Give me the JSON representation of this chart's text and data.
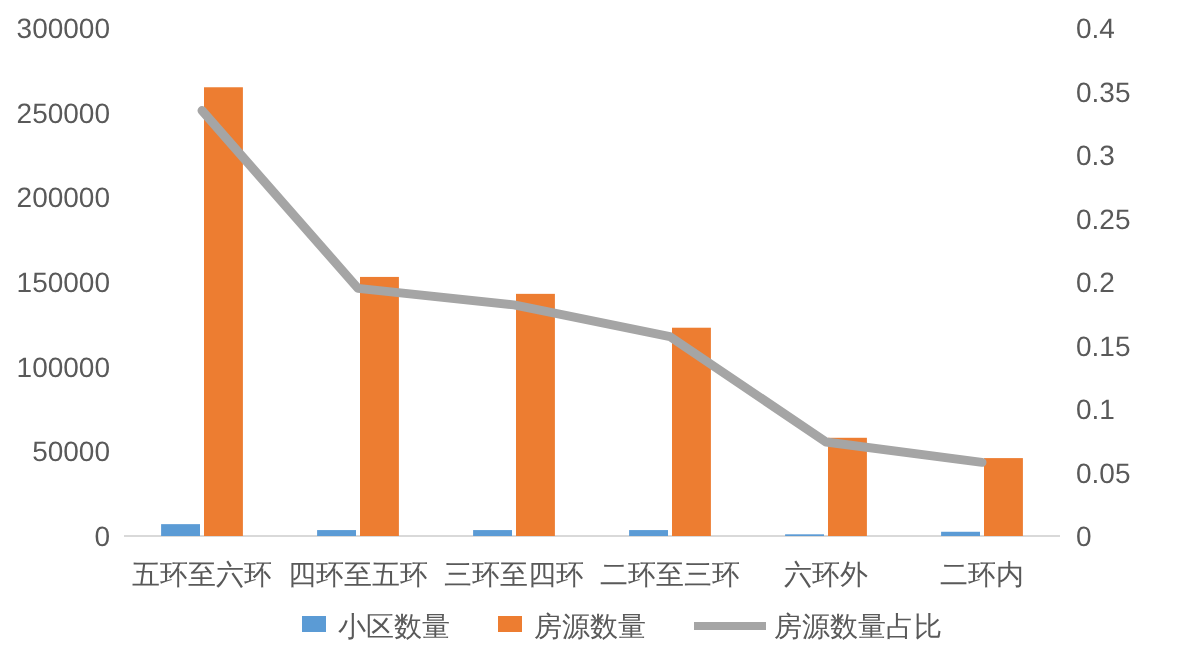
{
  "chart_data": {
    "type": "bar",
    "categories": [
      "五环至六环",
      "四环至五环",
      "三环至四环",
      "二环至三环",
      "六环外",
      "二环内"
    ],
    "series": [
      {
        "name": "小区数量",
        "color": "#5b9bd5",
        "values": [
          7000,
          3500,
          3500,
          3500,
          1000,
          2500
        ]
      },
      {
        "name": "房源数量",
        "color": "#ed7d31",
        "values": [
          265000,
          153000,
          143000,
          123000,
          58000,
          46000
        ]
      },
      {
        "name": "房源数量占比",
        "type": "line",
        "axis": "y2",
        "color": "#a5a5a5",
        "values": [
          0.335,
          0.195,
          0.182,
          0.157,
          0.074,
          0.058
        ]
      }
    ],
    "ylim": [
      0,
      300000
    ],
    "yticks": [
      0,
      50000,
      100000,
      150000,
      200000,
      250000,
      300000
    ],
    "y2lim": [
      0,
      0.4
    ],
    "y2ticks": [
      0,
      0.05,
      0.1,
      0.15,
      0.2,
      0.25,
      0.3,
      0.35,
      0.4
    ],
    "grid": false,
    "legend": "bottom"
  }
}
